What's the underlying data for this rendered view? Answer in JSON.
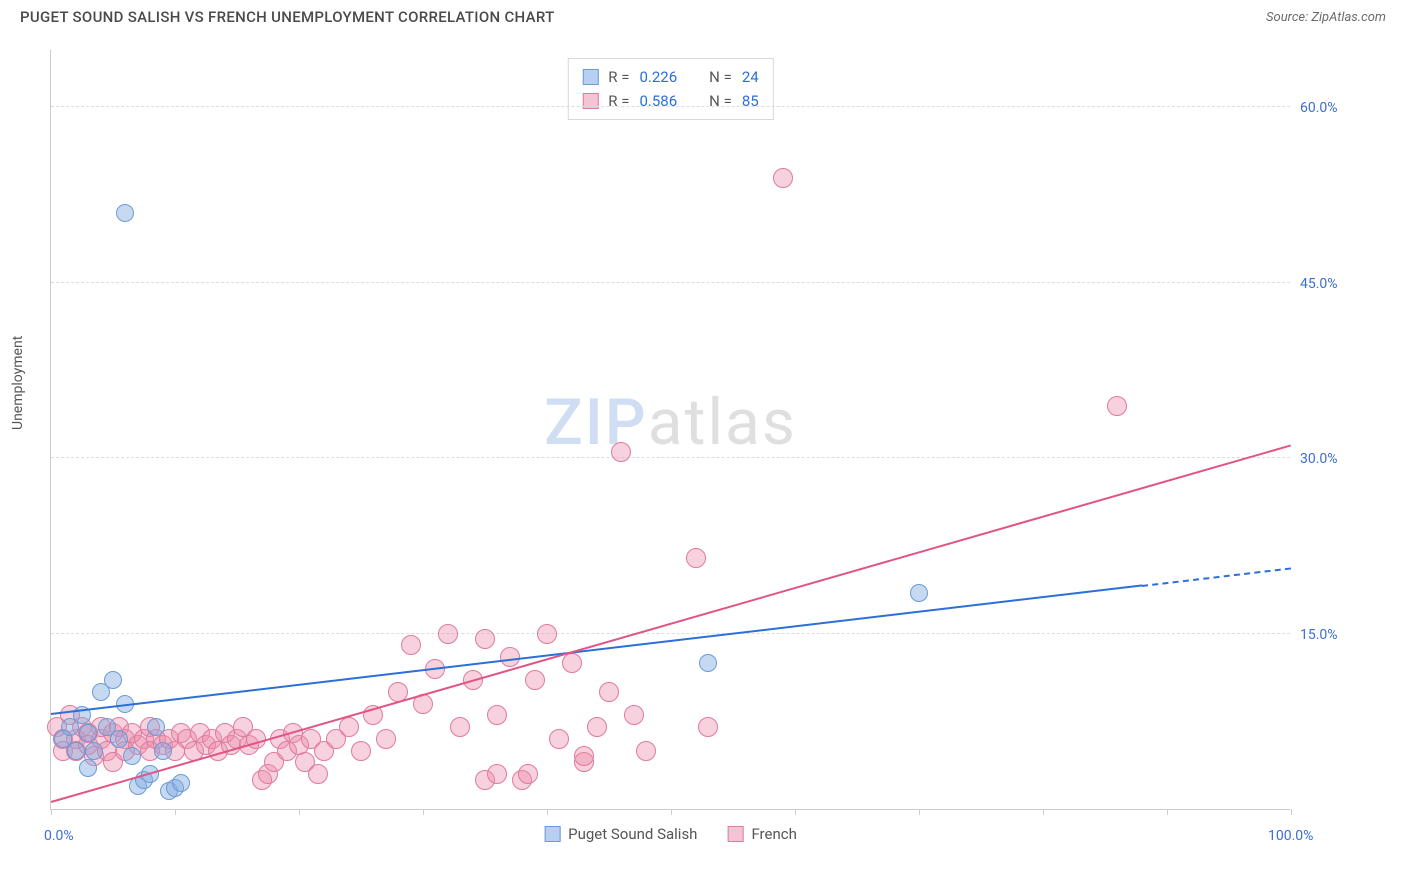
{
  "header": {
    "title": "PUGET SOUND SALISH VS FRENCH UNEMPLOYMENT CORRELATION CHART",
    "source": "Source: ZipAtlas.com"
  },
  "axis": {
    "ylabel": "Unemployment",
    "xmin": 0,
    "xmax": 100,
    "ymin": 0,
    "ymax": 65,
    "yticks": [
      15.0,
      30.0,
      45.0,
      60.0
    ],
    "ytick_labels": [
      "15.0%",
      "30.0%",
      "45.0%",
      "60.0%"
    ],
    "xlabel_left": "0.0%",
    "xlabel_right": "100.0%",
    "xtick_positions": [
      0,
      10,
      20,
      30,
      40,
      50,
      60,
      70,
      80,
      90,
      100
    ],
    "grid_color": "#dddddd",
    "axis_color": "#cccccc",
    "tick_label_color": "#3b6fd8",
    "label_fontsize": 14
  },
  "watermark": {
    "part1": "ZIP",
    "part2": "atlas"
  },
  "series": {
    "salish": {
      "label": "Puget Sound Salish",
      "fill": "rgba(130,170,225,0.45)",
      "stroke": "#6a9bd8",
      "line_color": "#2b6fd8",
      "swatch_fill": "#b7cff0",
      "swatch_border": "#6a9bd8",
      "R": "0.226",
      "N": "24",
      "regression": {
        "x1": 0,
        "y1": 8.0,
        "x2": 88,
        "y2": 19.0,
        "dash_to_x": 100,
        "dash_to_y": 20.5
      },
      "points": [
        [
          1,
          6
        ],
        [
          1.5,
          7
        ],
        [
          2,
          5
        ],
        [
          2.5,
          8
        ],
        [
          3,
          6.5
        ],
        [
          3.5,
          5
        ],
        [
          4,
          10
        ],
        [
          4.5,
          7
        ],
        [
          5,
          11
        ],
        [
          5.5,
          6
        ],
        [
          6,
          9
        ],
        [
          6.5,
          4.5
        ],
        [
          7,
          2
        ],
        [
          7.5,
          2.5
        ],
        [
          8,
          3
        ],
        [
          8.5,
          7
        ],
        [
          9,
          5
        ],
        [
          9.5,
          1.5
        ],
        [
          10,
          1.8
        ],
        [
          10.5,
          2.2
        ],
        [
          6,
          51
        ],
        [
          53,
          12.5
        ],
        [
          70,
          18.5
        ],
        [
          3,
          3.5
        ]
      ],
      "point_radius": 9
    },
    "french": {
      "label": "French",
      "fill": "rgba(235,140,170,0.40)",
      "stroke": "#e07aa0",
      "line_color": "#e05585",
      "swatch_fill": "#f4c3d4",
      "swatch_border": "#e07aa0",
      "R": "0.586",
      "N": "85",
      "regression": {
        "x1": 0,
        "y1": 0.5,
        "x2": 100,
        "y2": 31.0
      },
      "points": [
        [
          0.5,
          7
        ],
        [
          1,
          6
        ],
        [
          1,
          5
        ],
        [
          1.5,
          8
        ],
        [
          2,
          6
        ],
        [
          2,
          5
        ],
        [
          2.5,
          7
        ],
        [
          3,
          6.5
        ],
        [
          3,
          5.5
        ],
        [
          3.5,
          4.5
        ],
        [
          4,
          6
        ],
        [
          4,
          7
        ],
        [
          4.5,
          5
        ],
        [
          5,
          6.5
        ],
        [
          5,
          4
        ],
        [
          5.5,
          7
        ],
        [
          6,
          6
        ],
        [
          6,
          5
        ],
        [
          6.5,
          6.5
        ],
        [
          7,
          5.5
        ],
        [
          7.5,
          6
        ],
        [
          8,
          5
        ],
        [
          8,
          7
        ],
        [
          8.5,
          6
        ],
        [
          9,
          5.5
        ],
        [
          9.5,
          6
        ],
        [
          10,
          5
        ],
        [
          10.5,
          6.5
        ],
        [
          11,
          6
        ],
        [
          11.5,
          5
        ],
        [
          12,
          6.5
        ],
        [
          12.5,
          5.5
        ],
        [
          13,
          6
        ],
        [
          13.5,
          5
        ],
        [
          14,
          6.5
        ],
        [
          14.5,
          5.5
        ],
        [
          15,
          6
        ],
        [
          15.5,
          7
        ],
        [
          16,
          5.5
        ],
        [
          16.5,
          6
        ],
        [
          17,
          2.5
        ],
        [
          17.5,
          3
        ],
        [
          18,
          4
        ],
        [
          18.5,
          6
        ],
        [
          19,
          5
        ],
        [
          19.5,
          6.5
        ],
        [
          20,
          5.5
        ],
        [
          20.5,
          4
        ],
        [
          21,
          6
        ],
        [
          21.5,
          3
        ],
        [
          22,
          5
        ],
        [
          23,
          6
        ],
        [
          24,
          7
        ],
        [
          25,
          5
        ],
        [
          26,
          8
        ],
        [
          27,
          6
        ],
        [
          28,
          10
        ],
        [
          29,
          14
        ],
        [
          30,
          9
        ],
        [
          31,
          12
        ],
        [
          32,
          15
        ],
        [
          33,
          7
        ],
        [
          34,
          11
        ],
        [
          35,
          14.5
        ],
        [
          36,
          8
        ],
        [
          37,
          13
        ],
        [
          38,
          2.5
        ],
        [
          38.5,
          3
        ],
        [
          39,
          11
        ],
        [
          40,
          15
        ],
        [
          41,
          6
        ],
        [
          42,
          12.5
        ],
        [
          43,
          4
        ],
        [
          43,
          4.5
        ],
        [
          44,
          7
        ],
        [
          45,
          10
        ],
        [
          46,
          30.5
        ],
        [
          47,
          8
        ],
        [
          48,
          5
        ],
        [
          52,
          21.5
        ],
        [
          53,
          7
        ],
        [
          59,
          54
        ],
        [
          86,
          34.5
        ],
        [
          35,
          2.5
        ],
        [
          36,
          3
        ]
      ],
      "point_radius": 10
    }
  },
  "stats_box": {
    "rows": [
      {
        "swatch": "salish",
        "r_prefix": "R = ",
        "n_prefix": "N = "
      },
      {
        "swatch": "french",
        "r_prefix": "R = ",
        "n_prefix": "N = "
      }
    ]
  },
  "legend_bottom": [
    {
      "swatch": "salish"
    },
    {
      "swatch": "french"
    }
  ]
}
